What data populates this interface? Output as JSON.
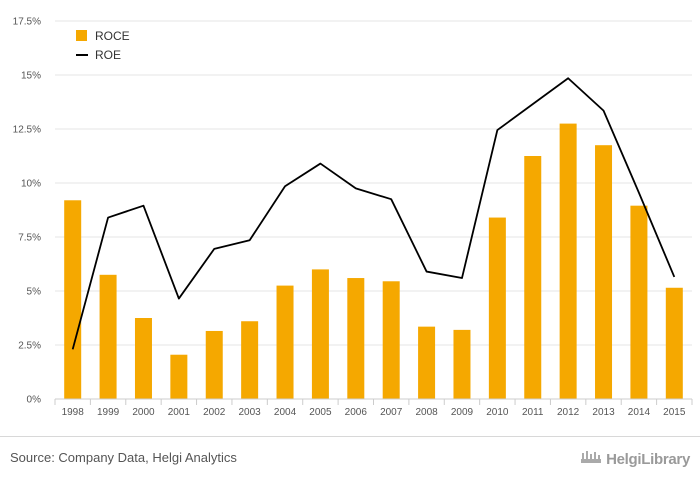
{
  "chart_data": {
    "type": "bar",
    "categories": [
      "1998",
      "1999",
      "2000",
      "2001",
      "2002",
      "2003",
      "2004",
      "2005",
      "2006",
      "2007",
      "2008",
      "2009",
      "2010",
      "2011",
      "2012",
      "2013",
      "2014",
      "2015"
    ],
    "series": [
      {
        "name": "ROCE",
        "type": "bar",
        "color": "#f5a800",
        "values": [
          9.2,
          5.75,
          3.75,
          2.05,
          3.15,
          3.6,
          5.25,
          6.0,
          5.6,
          5.45,
          3.35,
          3.2,
          8.4,
          11.25,
          12.75,
          11.75,
          8.95,
          5.15
        ]
      },
      {
        "name": "ROE",
        "type": "line",
        "color": "#000000",
        "values": [
          2.3,
          8.4,
          8.95,
          4.65,
          6.95,
          7.35,
          9.85,
          10.9,
          9.75,
          9.25,
          5.9,
          5.6,
          12.45,
          13.65,
          14.85,
          13.35,
          9.55,
          5.65
        ]
      }
    ],
    "yticks": [
      "0%",
      "2.5%",
      "5%",
      "7.5%",
      "10%",
      "12.5%",
      "15%",
      "17.5%"
    ],
    "ylim": [
      0,
      17.5
    ],
    "grid": true,
    "legend": "top-left",
    "title": "",
    "xlabel": "",
    "ylabel": ""
  },
  "footer": {
    "source": "Source: Company Data, Helgi Analytics",
    "logo_text": "HelgiLibrary",
    "logo_icon": "helgi-logo-icon"
  }
}
